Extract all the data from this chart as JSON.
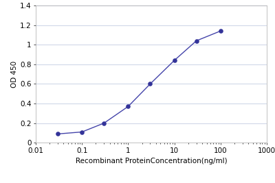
{
  "x": [
    0.03,
    0.1,
    0.3,
    1,
    3,
    10,
    30,
    100
  ],
  "y": [
    0.09,
    0.11,
    0.2,
    0.37,
    0.6,
    0.84,
    1.04,
    1.14
  ],
  "line_color": "#4444aa",
  "marker_color": "#333399",
  "xlabel": "Recombinant ProteinConcentration(ng/ml)",
  "ylabel": "OD 450",
  "xlim": [
    0.01,
    1000
  ],
  "ylim": [
    0,
    1.4
  ],
  "yticks": [
    0,
    0.2,
    0.4,
    0.6,
    0.8,
    1.0,
    1.2,
    1.4
  ],
  "ytick_labels": [
    "0",
    "0.2",
    "0.4",
    "0.6",
    "0.8",
    "1",
    "1.2",
    "1.4"
  ],
  "xtick_positions": [
    0.01,
    0.1,
    1,
    10,
    100,
    1000
  ],
  "xtick_labels": [
    "0.01",
    "0.1",
    "1",
    "10",
    "100",
    "1000"
  ],
  "plot_bg_color": "#ffffff",
  "grid_color": "#d0d8e8",
  "spine_color": "#aaaaaa",
  "label_fontsize": 7.5,
  "tick_fontsize": 7.5
}
